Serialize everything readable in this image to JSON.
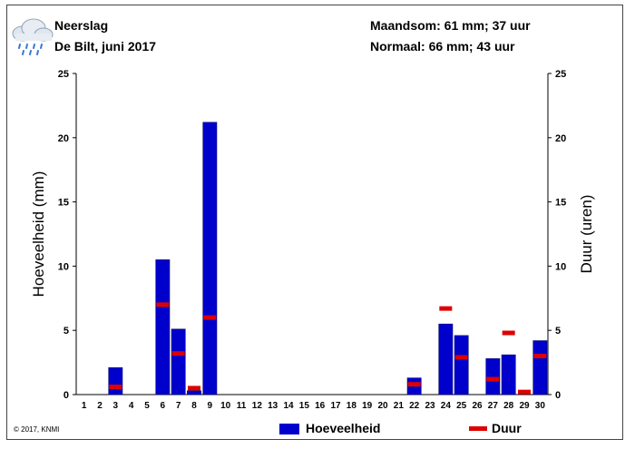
{
  "header": {
    "title": "Neerslag",
    "subtitle": "De Bilt, juni 2017",
    "monthly_sum": "Maandsom: 61 mm; 37 uur",
    "normal": "Normaal: 66 mm; 43 uur"
  },
  "footer": {
    "copyright": "© 2017, KNMI"
  },
  "icon": "rain-cloud-icon",
  "colors": {
    "amount": "#0000cc",
    "duration": "#dd0000"
  },
  "chart_data": {
    "type": "bar",
    "categories": [
      "1",
      "2",
      "3",
      "4",
      "5",
      "6",
      "7",
      "8",
      "9",
      "10",
      "11",
      "12",
      "13",
      "14",
      "15",
      "16",
      "17",
      "18",
      "19",
      "20",
      "21",
      "22",
      "23",
      "24",
      "25",
      "26",
      "27",
      "28",
      "29",
      "30"
    ],
    "ylabel": "Hoeveelheid (mm)",
    "y2label": "Duur (uren)",
    "ylim": [
      0,
      25
    ],
    "y2lim": [
      0,
      25
    ],
    "yticks": [
      0,
      5,
      10,
      15,
      20,
      25
    ],
    "series": [
      {
        "name": "Hoeveelheid",
        "type": "bar",
        "values": [
          0,
          0,
          2.1,
          0,
          0,
          10.5,
          5.1,
          0.3,
          21.2,
          0,
          0,
          0,
          0,
          0,
          0,
          0,
          0,
          0,
          0,
          0,
          0,
          1.3,
          0,
          5.5,
          4.6,
          0,
          2.8,
          3.1,
          0,
          4.2
        ]
      },
      {
        "name": "Duur",
        "type": "marker",
        "values": [
          null,
          null,
          0.6,
          null,
          null,
          7.0,
          3.2,
          0.5,
          6.0,
          null,
          null,
          null,
          null,
          null,
          null,
          null,
          null,
          null,
          null,
          null,
          null,
          0.8,
          null,
          6.7,
          2.9,
          null,
          1.2,
          4.8,
          0.2,
          3.0
        ]
      }
    ],
    "legend_position": "bottom"
  }
}
